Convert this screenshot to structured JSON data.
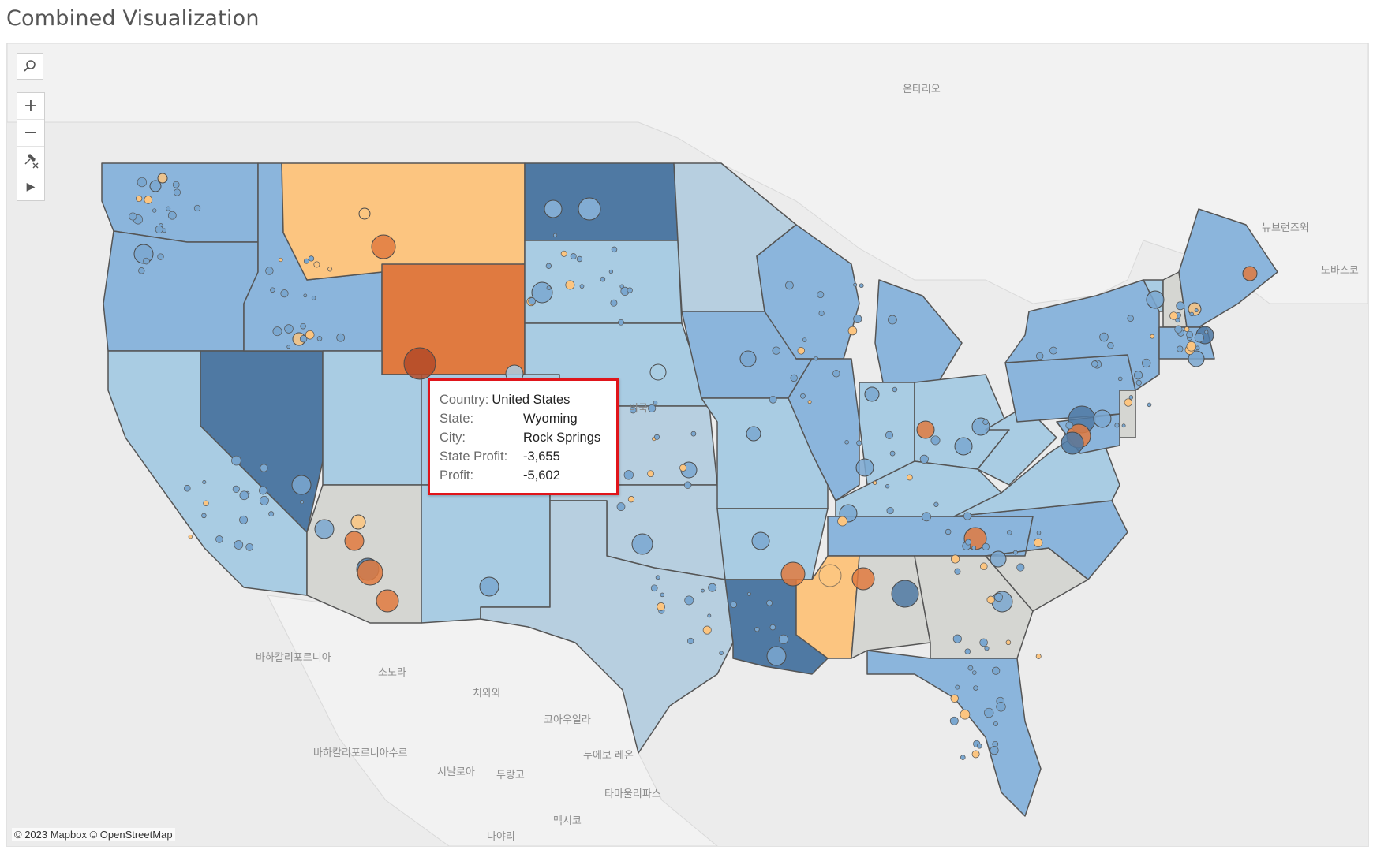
{
  "title": "Combined Visualization",
  "toolbar": {
    "search_icon": "search-icon",
    "zoom_in": "+",
    "zoom_out": "−",
    "pin_icon": "pin-icon",
    "expand_icon": "▶"
  },
  "attribution": "© 2023 Mapbox © OpenStreetMap",
  "tooltip": {
    "country_label": "Country:",
    "country_value": "United States",
    "state_label": "State:",
    "state_value": "Wyoming",
    "city_label": "City:",
    "city_value": "Rock Springs",
    "state_profit_label": "State Profit:",
    "state_profit_value": "-3,655",
    "profit_label": "Profit:",
    "profit_value": "-5,602"
  },
  "map_labels": {
    "ontario": "온타리오",
    "new_brunswick": "뉴브런즈윅",
    "nova_scotia": "노바스코",
    "baja_california": "바하칼리포르니아",
    "sonora": "소노라",
    "chihuahua": "치와와",
    "coahuila": "코아우일라",
    "nuevo_leon": "누에보 레온",
    "baja_california_sur": "바하칼리포르니아수르",
    "sinaloa": "시날로아",
    "durango": "두랑고",
    "tamaulipas": "타마울리파스",
    "mexico": "멕시코",
    "nayarit": "나야리",
    "usa": "미국"
  },
  "colors": {
    "map_background": "#ececec",
    "land_foreign": "#f2f2f2",
    "profit_very_negative": "#e07a40",
    "profit_negative": "#fcc580",
    "profit_neutral": "#d5d6d2",
    "profit_low": "#a9cce3",
    "profit_mid": "#8bb5dc",
    "profit_high": "#4f79a3",
    "tooltip_highlight_border": "#e0151b"
  },
  "legend_semantics": "diverging orange-blue color encodes State Profit (orange = loss, blue = profit); circle size and color encode city Profit"
}
